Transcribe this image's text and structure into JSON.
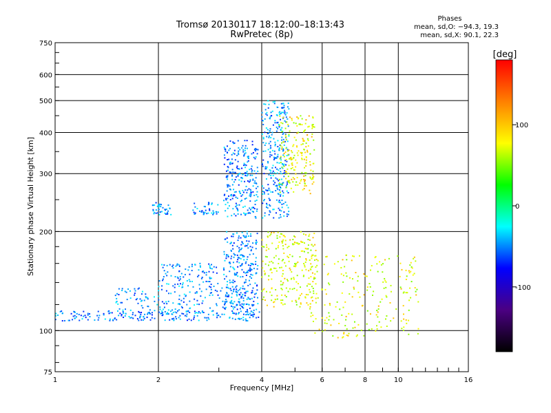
{
  "header": {
    "title_line1": "Tromsø 20130117 18:12:00–18:13:43",
    "title_line2": "RwPretec (8p)"
  },
  "stats": {
    "heading": "Phases",
    "line_o": "mean, sd,O: −94.3, 19.3",
    "line_x": "mean, sd,X:  90.1, 22.3"
  },
  "chart_data": {
    "type": "scatter",
    "xlabel": "Frequency [MHz]",
    "ylabel": "Stationary phase Virtual Height [km]",
    "x_scale": "log",
    "y_scale": "log",
    "xlim": [
      1,
      16
    ],
    "ylim": [
      75,
      750
    ],
    "x_ticks": [
      1,
      2,
      4,
      6,
      8,
      10,
      16
    ],
    "x_tick_labels": [
      "1",
      "2",
      "4",
      "6",
      "8",
      "10",
      "16"
    ],
    "y_ticks": [
      75,
      100,
      200,
      300,
      400,
      500,
      600,
      750
    ],
    "y_tick_labels": [
      "75",
      "100",
      "200",
      "300",
      "400",
      "500",
      "600",
      "750"
    ],
    "grid": true,
    "colorbar": {
      "label": "[deg]",
      "range": [
        -180,
        180
      ],
      "ticks": [
        100,
        0,
        -100
      ],
      "tick_labels": [
        "100",
        "0",
        "-100"
      ],
      "colors": [
        "#000000",
        "#4b0082",
        "#0000ff",
        "#00ffff",
        "#00ff00",
        "#ffff00",
        "#ff8000",
        "#ff0000"
      ]
    },
    "series": [
      {
        "color": "#2030ff",
        "regions": [
          {
            "x": [
              1.0,
              4.0
            ],
            "y": [
              107,
              115
            ],
            "n": 200,
            "phase": -100
          },
          {
            "x": [
              1.5,
              3.8
            ],
            "y": [
              112,
              135
            ],
            "n": 180,
            "phase": -95
          },
          {
            "x": [
              2.0,
              3.0
            ],
            "y": [
              135,
              160
            ],
            "n": 100,
            "phase": -95
          },
          {
            "x": [
              3.1,
              3.9
            ],
            "y": [
              115,
              200
            ],
            "n": 260,
            "phase": -100
          },
          {
            "x": [
              3.1,
              3.9
            ],
            "y": [
              220,
              380
            ],
            "n": 260,
            "phase": -100
          },
          {
            "x": [
              4.0,
              4.8
            ],
            "y": [
              220,
              500
            ],
            "n": 300,
            "phase": -95
          },
          {
            "x": [
              1.9,
              2.2
            ],
            "y": [
              225,
              245
            ],
            "n": 40,
            "phase": -95
          },
          {
            "x": [
              2.5,
              3.0
            ],
            "y": [
              225,
              245
            ],
            "n": 40,
            "phase": -95
          }
        ]
      },
      {
        "color": "#ffd000",
        "regions": [
          {
            "x": [
              4.0,
              5.8
            ],
            "y": [
              118,
              200
            ],
            "n": 240,
            "phase": 90
          },
          {
            "x": [
              4.5,
              5.7
            ],
            "y": [
              260,
              450
            ],
            "n": 200,
            "phase": 95
          },
          {
            "x": [
              5.5,
              11.5
            ],
            "y": [
              95,
              170
            ],
            "n": 220,
            "phase": 90
          }
        ]
      }
    ]
  }
}
